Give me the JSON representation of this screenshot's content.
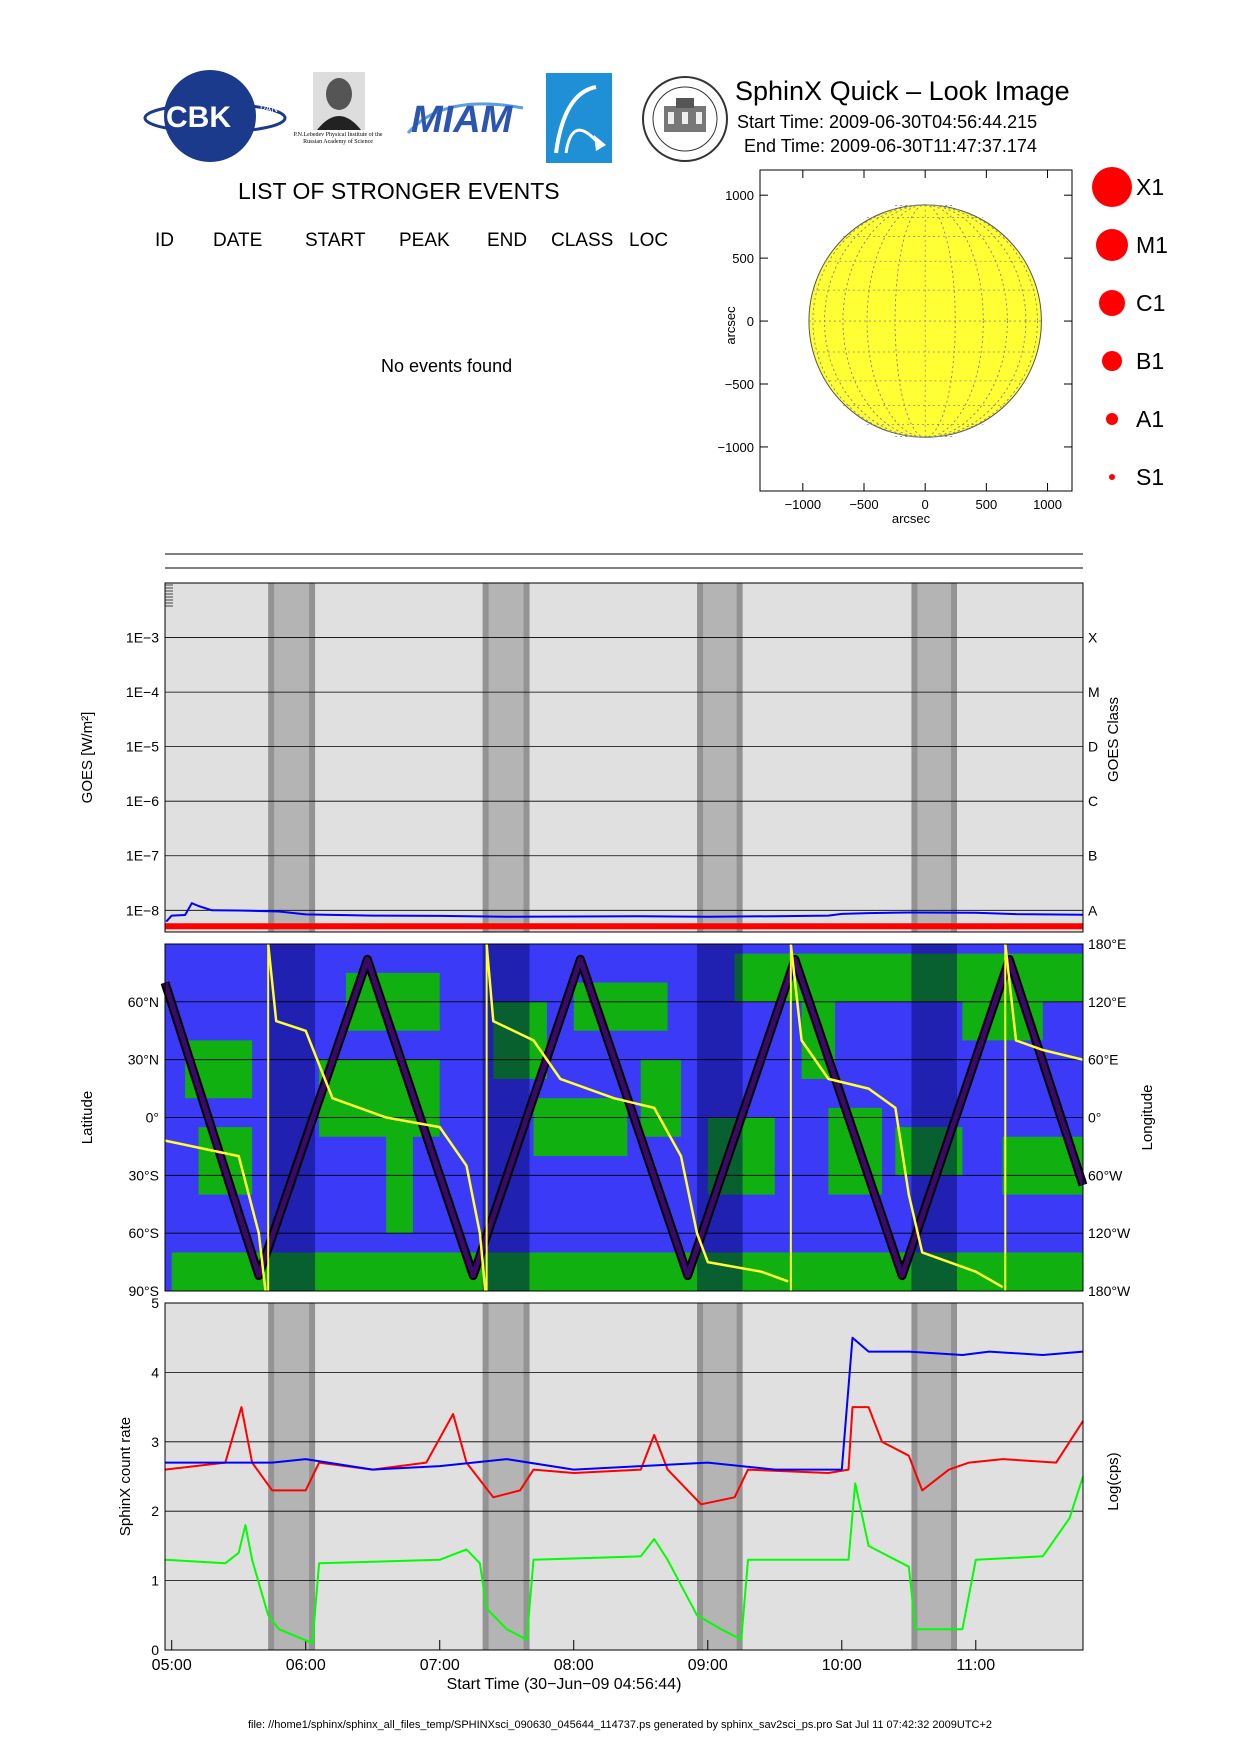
{
  "header": {
    "title": "SphinX Quick – Look Image",
    "start_time": "Start Time: 2009-06-30T04:56:44.215",
    "end_time": "End Time: 2009-06-30T11:47:37.174",
    "logo_cbk": "CBK",
    "logo_cbk_small": "PAN",
    "logo_lebedev": "P.N.Lebedev Physical Institute of the Russian Academy of Science",
    "logo_miam": "MIAM"
  },
  "events": {
    "title": "LIST OF STRONGER EVENTS",
    "columns": [
      "ID",
      "DATE",
      "START",
      "PEAK",
      "END",
      "CLASS",
      "LOC"
    ],
    "message": "No events found"
  },
  "legend_classes": [
    "X1",
    "M1",
    "C1",
    "B1",
    "A1",
    "S1"
  ],
  "footer": "file: //home1/sphinx/sphinx_all_files_temp/SPHINXsci_090630_045644_114737.ps generated by sphinx_sav2sci_ps.pro Sat Jul 11 07:42:32 2009UTC+2",
  "colors": {
    "sun": "#ffff33",
    "legend": "#ff0000",
    "goes_low": "#ff0000",
    "goes_high": "#0000ff",
    "map_ocean": "#3b3bf7",
    "map_land": "#10b010",
    "latitude_track": "#3a0a66",
    "longitude_track": "#ffff33",
    "sphinx_high": "#0000ff",
    "sphinx_mid": "#ff0000",
    "sphinx_low": "#00ff00"
  },
  "chart_data": [
    {
      "type": "scatter",
      "id": "sun_map",
      "xlabel": "arcsec",
      "ylabel": "arcsec",
      "xlim": [
        -1350,
        1200
      ],
      "ylim": [
        -1350,
        1200
      ],
      "xticks": [
        -1000,
        -500,
        0,
        500,
        1000
      ],
      "yticks": [
        -1000,
        -500,
        0,
        500,
        1000
      ],
      "x_tick_labels": [
        "−1000",
        "−500",
        "0",
        "500",
        "1000"
      ],
      "y_tick_labels": [
        "−1000",
        "−500",
        "0",
        "500",
        "1000"
      ],
      "solar_radius": 950,
      "grid": true
    },
    {
      "type": "line",
      "id": "goes",
      "ylabel": "GOES [W/m²]",
      "ylabel_right": "GOES Class",
      "y_scale": "log",
      "ylim": [
        4e-09,
        0.01
      ],
      "yticks": [
        1e-08,
        1e-07,
        1e-06,
        1e-05,
        0.0001,
        0.001
      ],
      "y_tick_labels": [
        "1E−8",
        "1E−7",
        "1E−6",
        "1E−5",
        "1E−4",
        "1E−3"
      ],
      "right_tick_labels": [
        "A",
        "B",
        "C",
        "D",
        "M",
        "X"
      ],
      "right_tick_values": [
        1e-08,
        1e-07,
        1e-06,
        1e-05,
        0.0001,
        0.001
      ],
      "xlim": [
        4.95,
        11.8
      ],
      "shaded_intervals": [
        [
          5.72,
          6.07
        ],
        [
          7.32,
          7.67
        ],
        [
          8.92,
          9.26
        ],
        [
          10.52,
          10.86
        ]
      ],
      "series": [
        {
          "values": [
            [
              4.96,
              6.2e-09
            ],
            [
              5.0,
              8e-09
            ],
            [
              5.1,
              8.2e-09
            ],
            [
              5.15,
              1.35e-08
            ],
            [
              5.2,
              1.2e-08
            ],
            [
              5.3,
              1e-08
            ],
            [
              5.5,
              9.9e-09
            ],
            [
              5.8,
              9.5e-09
            ],
            [
              6.0,
              8.4e-09
            ],
            [
              6.5,
              8e-09
            ],
            [
              7.0,
              7.9e-09
            ],
            [
              7.5,
              7.6e-09
            ],
            [
              8.0,
              7.7e-09
            ],
            [
              8.5,
              7.8e-09
            ],
            [
              9.0,
              7.6e-09
            ],
            [
              9.5,
              7.8e-09
            ],
            [
              9.9,
              8e-09
            ],
            [
              10.0,
              8.6e-09
            ],
            [
              10.2,
              8.9e-09
            ],
            [
              10.5,
              9.1e-09
            ],
            [
              11.0,
              9e-09
            ],
            [
              11.3,
              8.5e-09
            ],
            [
              11.8,
              8.3e-09
            ]
          ]
        },
        {
          "values": [
            [
              4.95,
              5.1e-09
            ],
            [
              11.8,
              5.1e-09
            ]
          ]
        }
      ]
    },
    {
      "type": "area",
      "id": "orbit",
      "ylabel": "Latitude",
      "ylabel_right": "Longitude",
      "ylim": [
        -90,
        90
      ],
      "yticks": [
        -90,
        -60,
        -30,
        0,
        30,
        60
      ],
      "y_tick_labels": [
        "90°S",
        "60°S",
        "30°S",
        "0°",
        "30°N",
        "60°N"
      ],
      "right_tick_labels": [
        "180°W",
        "120°W",
        "60°W",
        "0°",
        "60°E",
        "120°E",
        "180°E"
      ],
      "xlim": [
        4.95,
        11.8
      ],
      "shaded_intervals": [
        [
          5.72,
          6.07
        ],
        [
          7.32,
          7.67
        ],
        [
          8.92,
          9.26
        ],
        [
          10.52,
          10.86
        ]
      ],
      "series": [
        {
          "values": [
            [
              4.95,
              70
            ],
            [
              5.65,
              -82
            ],
            [
              6.46,
              82
            ],
            [
              7.25,
              -82
            ],
            [
              8.05,
              82
            ],
            [
              8.85,
              -82
            ],
            [
              9.65,
              82
            ],
            [
              10.45,
              -82
            ],
            [
              11.25,
              82
            ],
            [
              11.8,
              -35
            ]
          ]
        },
        {
          "values": [
            [
              4.95,
              -12
            ],
            [
              5.5,
              -20
            ],
            [
              5.65,
              -60
            ],
            [
              5.7,
              -90
            ],
            [
              5.72,
              90
            ],
            [
              5.78,
              50
            ],
            [
              6.0,
              45
            ],
            [
              6.2,
              10
            ],
            [
              6.6,
              0
            ],
            [
              7.0,
              -5
            ],
            [
              7.2,
              -25
            ],
            [
              7.3,
              -60
            ],
            [
              7.34,
              -90
            ],
            [
              7.35,
              90
            ],
            [
              7.4,
              50
            ],
            [
              7.7,
              40
            ],
            [
              7.9,
              20
            ],
            [
              8.3,
              10
            ],
            [
              8.6,
              5
            ],
            [
              8.8,
              -20
            ],
            [
              8.92,
              -60
            ],
            [
              9.0,
              -75
            ],
            [
              9.4,
              -80
            ],
            [
              9.6,
              -85
            ],
            [
              9.62,
              90
            ],
            [
              9.7,
              40
            ],
            [
              9.9,
              20
            ],
            [
              10.2,
              15
            ],
            [
              10.4,
              5
            ],
            [
              10.5,
              -40
            ],
            [
              10.6,
              -70
            ],
            [
              11.0,
              -80
            ],
            [
              11.2,
              -88
            ],
            [
              11.22,
              90
            ],
            [
              11.3,
              40
            ],
            [
              11.5,
              35
            ],
            [
              11.8,
              30
            ]
          ]
        }
      ]
    },
    {
      "type": "line",
      "id": "sphinx",
      "ylabel": "SphinX count rate",
      "ylabel_right": "Log(cps)",
      "xlabel": "Start Time (30−Jun−09 04:56:44)",
      "ylim": [
        0,
        5
      ],
      "yticks": [
        0,
        1,
        2,
        3,
        4,
        5
      ],
      "y_tick_labels": [
        "0",
        "1",
        "2",
        "3",
        "4",
        "5"
      ],
      "xlim": [
        4.95,
        11.8
      ],
      "xticks": [
        5,
        6,
        7,
        8,
        9,
        10,
        11
      ],
      "x_tick_labels": [
        "05:00",
        "06:00",
        "07:00",
        "08:00",
        "09:00",
        "10:00",
        "11:00"
      ],
      "shaded_intervals": [
        [
          5.72,
          6.07
        ],
        [
          7.32,
          7.67
        ],
        [
          8.92,
          9.26
        ],
        [
          10.52,
          10.86
        ]
      ],
      "series": [
        {
          "values": [
            [
              4.95,
              2.7
            ],
            [
              5.5,
              2.7
            ],
            [
              5.75,
              2.7
            ],
            [
              6.0,
              2.75
            ],
            [
              6.5,
              2.6
            ],
            [
              7.0,
              2.65
            ],
            [
              7.5,
              2.75
            ],
            [
              8.0,
              2.6
            ],
            [
              8.5,
              2.65
            ],
            [
              9.0,
              2.7
            ],
            [
              9.5,
              2.6
            ],
            [
              10.0,
              2.6
            ],
            [
              10.08,
              4.5
            ],
            [
              10.2,
              4.3
            ],
            [
              10.5,
              4.3
            ],
            [
              10.9,
              4.25
            ],
            [
              11.1,
              4.3
            ],
            [
              11.5,
              4.25
            ],
            [
              11.8,
              4.3
            ]
          ]
        },
        {
          "values": [
            [
              4.95,
              2.6
            ],
            [
              5.4,
              2.7
            ],
            [
              5.52,
              3.5
            ],
            [
              5.6,
              2.7
            ],
            [
              5.75,
              2.3
            ],
            [
              6.0,
              2.3
            ],
            [
              6.1,
              2.7
            ],
            [
              6.5,
              2.6
            ],
            [
              6.9,
              2.7
            ],
            [
              7.1,
              3.4
            ],
            [
              7.2,
              2.7
            ],
            [
              7.4,
              2.2
            ],
            [
              7.6,
              2.3
            ],
            [
              7.7,
              2.6
            ],
            [
              8.0,
              2.55
            ],
            [
              8.5,
              2.6
            ],
            [
              8.6,
              3.1
            ],
            [
              8.7,
              2.6
            ],
            [
              8.95,
              2.1
            ],
            [
              9.2,
              2.2
            ],
            [
              9.3,
              2.6
            ],
            [
              9.9,
              2.55
            ],
            [
              10.05,
              2.6
            ],
            [
              10.08,
              3.5
            ],
            [
              10.2,
              3.5
            ],
            [
              10.3,
              3.0
            ],
            [
              10.5,
              2.8
            ],
            [
              10.6,
              2.3
            ],
            [
              10.8,
              2.6
            ],
            [
              10.95,
              2.7
            ],
            [
              11.2,
              2.75
            ],
            [
              11.6,
              2.7
            ],
            [
              11.7,
              3.0
            ],
            [
              11.8,
              3.3
            ]
          ]
        },
        {
          "values": [
            [
              4.95,
              1.3
            ],
            [
              5.4,
              1.25
            ],
            [
              5.5,
              1.4
            ],
            [
              5.55,
              1.8
            ],
            [
              5.6,
              1.3
            ],
            [
              5.72,
              0.5
            ],
            [
              5.8,
              0.3
            ],
            [
              6.05,
              0.1
            ],
            [
              6.1,
              1.25
            ],
            [
              7.0,
              1.3
            ],
            [
              7.2,
              1.45
            ],
            [
              7.3,
              1.25
            ],
            [
              7.35,
              0.6
            ],
            [
              7.5,
              0.3
            ],
            [
              7.65,
              0.15
            ],
            [
              7.7,
              1.3
            ],
            [
              8.5,
              1.35
            ],
            [
              8.6,
              1.6
            ],
            [
              8.7,
              1.3
            ],
            [
              8.92,
              0.5
            ],
            [
              9.1,
              0.3
            ],
            [
              9.25,
              0.15
            ],
            [
              9.3,
              1.3
            ],
            [
              9.9,
              1.3
            ],
            [
              10.05,
              1.3
            ],
            [
              10.1,
              2.4
            ],
            [
              10.2,
              1.5
            ],
            [
              10.5,
              1.2
            ],
            [
              10.55,
              0.3
            ],
            [
              10.9,
              0.3
            ],
            [
              11.0,
              1.3
            ],
            [
              11.5,
              1.35
            ],
            [
              11.7,
              1.9
            ],
            [
              11.8,
              2.5
            ]
          ]
        }
      ]
    }
  ]
}
